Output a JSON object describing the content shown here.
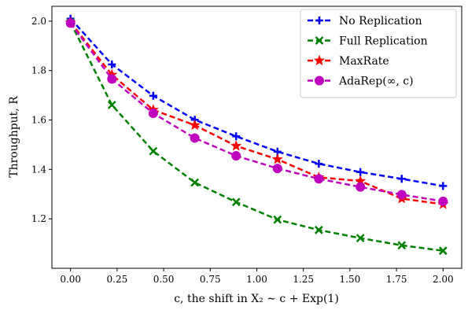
{
  "chart_data": {
    "type": "line",
    "xlabel": "c, the shift in X₂ ∼ c + Exp(1)",
    "ylabel": "Throughput, R",
    "xlim": [
      -0.1,
      2.1
    ],
    "ylim": [
      1.0,
      2.06
    ],
    "xticks": [
      "0.00",
      "0.25",
      "0.50",
      "0.75",
      "1.00",
      "1.25",
      "1.50",
      "1.75",
      "2.00"
    ],
    "yticks": [
      "1.2",
      "1.4",
      "1.6",
      "1.8",
      "2.0"
    ],
    "grid": false,
    "legend_position": "top-right",
    "x": [
      0.0,
      0.222,
      0.444,
      0.667,
      0.889,
      1.111,
      1.333,
      1.556,
      1.778,
      2.0
    ],
    "series": [
      {
        "name": "No Replication",
        "color": "#0000ff",
        "marker": "plus",
        "values": [
          2.01,
          1.825,
          1.698,
          1.601,
          1.534,
          1.472,
          1.423,
          1.389,
          1.362,
          1.333
        ]
      },
      {
        "name": "Full Replication",
        "color": "#008000",
        "marker": "x",
        "values": [
          1.995,
          1.661,
          1.474,
          1.347,
          1.268,
          1.197,
          1.155,
          1.122,
          1.093,
          1.071
        ]
      },
      {
        "name": "MaxRate",
        "color": "#ff0000",
        "marker": "star",
        "values": [
          1.995,
          1.783,
          1.641,
          1.579,
          1.495,
          1.441,
          1.368,
          1.353,
          1.282,
          1.259
        ]
      },
      {
        "name": "AdaRep(∞, c)",
        "color": "#bf00bf",
        "marker": "circle",
        "values": [
          1.992,
          1.766,
          1.627,
          1.527,
          1.455,
          1.404,
          1.362,
          1.329,
          1.298,
          1.271
        ]
      }
    ]
  }
}
